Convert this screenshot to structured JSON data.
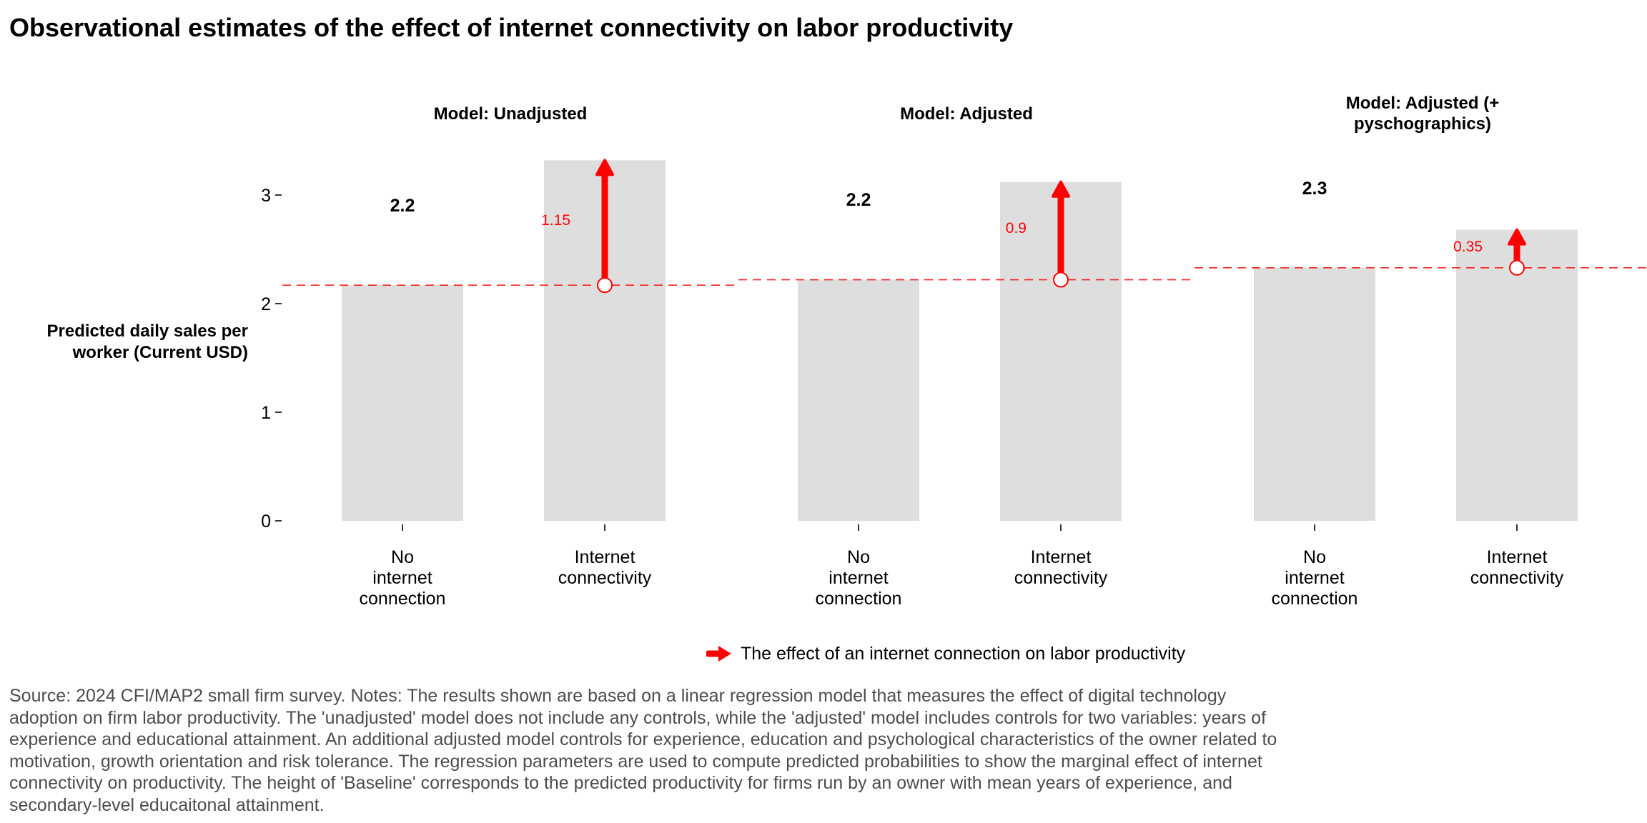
{
  "chart_data": {
    "type": "bar",
    "title": "Observational estimates of the effect of internet connectivity on labor productivity",
    "ylabel": "Predicted daily sales per worker (Current USD)",
    "ylim": [
      0,
      3.4
    ],
    "yticks": [
      0,
      1,
      2,
      3
    ],
    "ytick_labels": [
      "0",
      "1",
      "2",
      "3"
    ],
    "categories": [
      "No internet connection",
      "Internet connectivity"
    ],
    "category_labels": [
      [
        "No",
        "internet",
        "connection"
      ],
      [
        "Internet",
        "connectivity"
      ]
    ],
    "panels": [
      {
        "title_lines": [
          "Model: Unadjusted"
        ],
        "baseline": 2.17,
        "internet": 3.32,
        "baseline_label": "2.2",
        "effect_label": "1.15"
      },
      {
        "title_lines": [
          "Model: Adjusted"
        ],
        "baseline": 2.22,
        "internet": 3.12,
        "baseline_label": "2.2",
        "effect_label": "0.9"
      },
      {
        "title_lines": [
          "Model: Adjusted (+",
          "pyschographics)"
        ],
        "baseline": 2.33,
        "internet": 2.68,
        "baseline_label": "2.3",
        "effect_label": "0.35"
      }
    ],
    "legend": {
      "label": "The effect of an internet connection on labor productivity",
      "color": "#ff0000"
    },
    "colors": {
      "bar": "#dedede",
      "effect": "#ff0000",
      "text": "#000000"
    }
  },
  "footer": {
    "note": "Source: 2024 CFI/MAP2 small firm survey. Notes: The results shown are based on a linear regression model that measures the effect of digital technology adoption on firm labor productivity. The 'unadjusted' model does not include any controls, while the 'adjusted' model includes controls for two variables: years of experience and educational attainment. An additional adjusted model controls for experience, education and psychological characteristics of the owner related to motivation, growth orientation and risk tolerance. The regression parameters are used to compute predicted probabilities to show the marginal effect of internet connectivity on productivity. The height of 'Baseline' corresponds to the predicted productivity for firms run by an owner with mean years of experience, and secondary-level educaitonal attainment."
  }
}
